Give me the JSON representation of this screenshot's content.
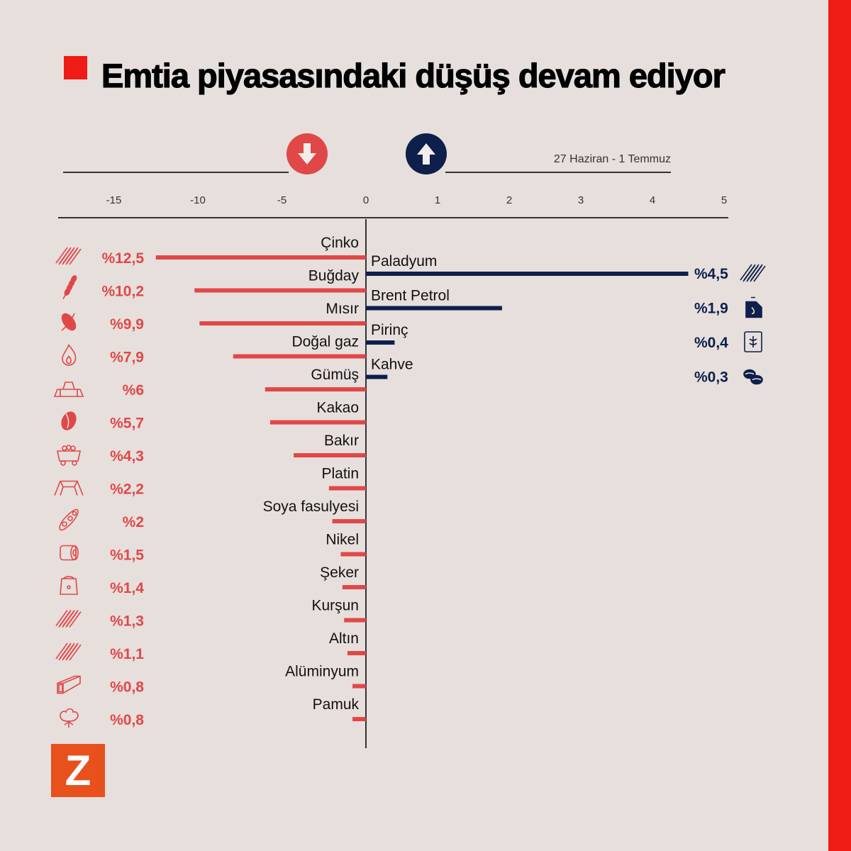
{
  "title": "Emtia piyasasındaki düşüş devam ediyor",
  "date_range": "27 Haziran - 1 Temmuz",
  "logo_text": "Z",
  "colors": {
    "down": "#e04848",
    "up": "#0d1f4a",
    "accent": "#ee1c14",
    "logo": "#e8501c"
  },
  "chart_data": {
    "type": "bar",
    "orientation": "horizontal",
    "title": "Emtia piyasasındaki düşüş devam ediyor",
    "subtitle": "27 Haziran - 1 Temmuz",
    "xlabel": "",
    "ylabel": "",
    "unit": "%",
    "ticks": [
      "-15",
      "-10",
      "-5",
      "0",
      "1",
      "2",
      "3",
      "4",
      "5"
    ],
    "tick_values": [
      -15,
      -10,
      -5,
      0,
      1,
      2,
      3,
      4,
      5
    ],
    "xlim_negative": [
      -15,
      0
    ],
    "xlim_positive": [
      0,
      5
    ],
    "negative": [
      {
        "name": "Çinko",
        "value": -12.5,
        "label": "%12,5",
        "icon": "metal-bars"
      },
      {
        "name": "Buğday",
        "value": -10.2,
        "label": "%10,2",
        "icon": "wheat"
      },
      {
        "name": "Mısır",
        "value": -9.9,
        "label": "%9,9",
        "icon": "corn"
      },
      {
        "name": "Doğal gaz",
        "value": -7.9,
        "label": "%7,9",
        "icon": "flame"
      },
      {
        "name": "Gümüş",
        "value": -6,
        "label": "%6",
        "icon": "ingots"
      },
      {
        "name": "Kakao",
        "value": -5.7,
        "label": "%5,7",
        "icon": "cocoa"
      },
      {
        "name": "Bakır",
        "value": -4.3,
        "label": "%4,3",
        "icon": "mine-cart"
      },
      {
        "name": "Platin",
        "value": -2.2,
        "label": "%2,2",
        "icon": "ingot"
      },
      {
        "name": "Soya fasulyesi",
        "value": -2,
        "label": "%2",
        "icon": "soybean"
      },
      {
        "name": "Nikel",
        "value": -1.5,
        "label": "%1,5",
        "icon": "coil"
      },
      {
        "name": "Şeker",
        "value": -1.4,
        "label": "%1,4",
        "icon": "sack"
      },
      {
        "name": "Kurşun",
        "value": -1.3,
        "label": "%1,3",
        "icon": "metal-bars"
      },
      {
        "name": "Altın",
        "value": -1.1,
        "label": "%1,1",
        "icon": "metal-bars"
      },
      {
        "name": "Alüminyum",
        "value": -0.8,
        "label": "%0,8",
        "icon": "beam"
      },
      {
        "name": "Pamuk",
        "value": -0.8,
        "label": "%0,8",
        "icon": "cotton"
      }
    ],
    "positive": [
      {
        "name": "Paladyum",
        "value": 4.5,
        "label": "%4,5",
        "icon": "metal-bars"
      },
      {
        "name": "Brent Petrol",
        "value": 1.9,
        "label": "%1,9",
        "icon": "oil-can"
      },
      {
        "name": "Pirinç",
        "value": 0.4,
        "label": "%0,4",
        "icon": "rice-sack"
      },
      {
        "name": "Kahve",
        "value": 0.3,
        "label": "%0,3",
        "icon": "coffee-beans"
      }
    ]
  }
}
